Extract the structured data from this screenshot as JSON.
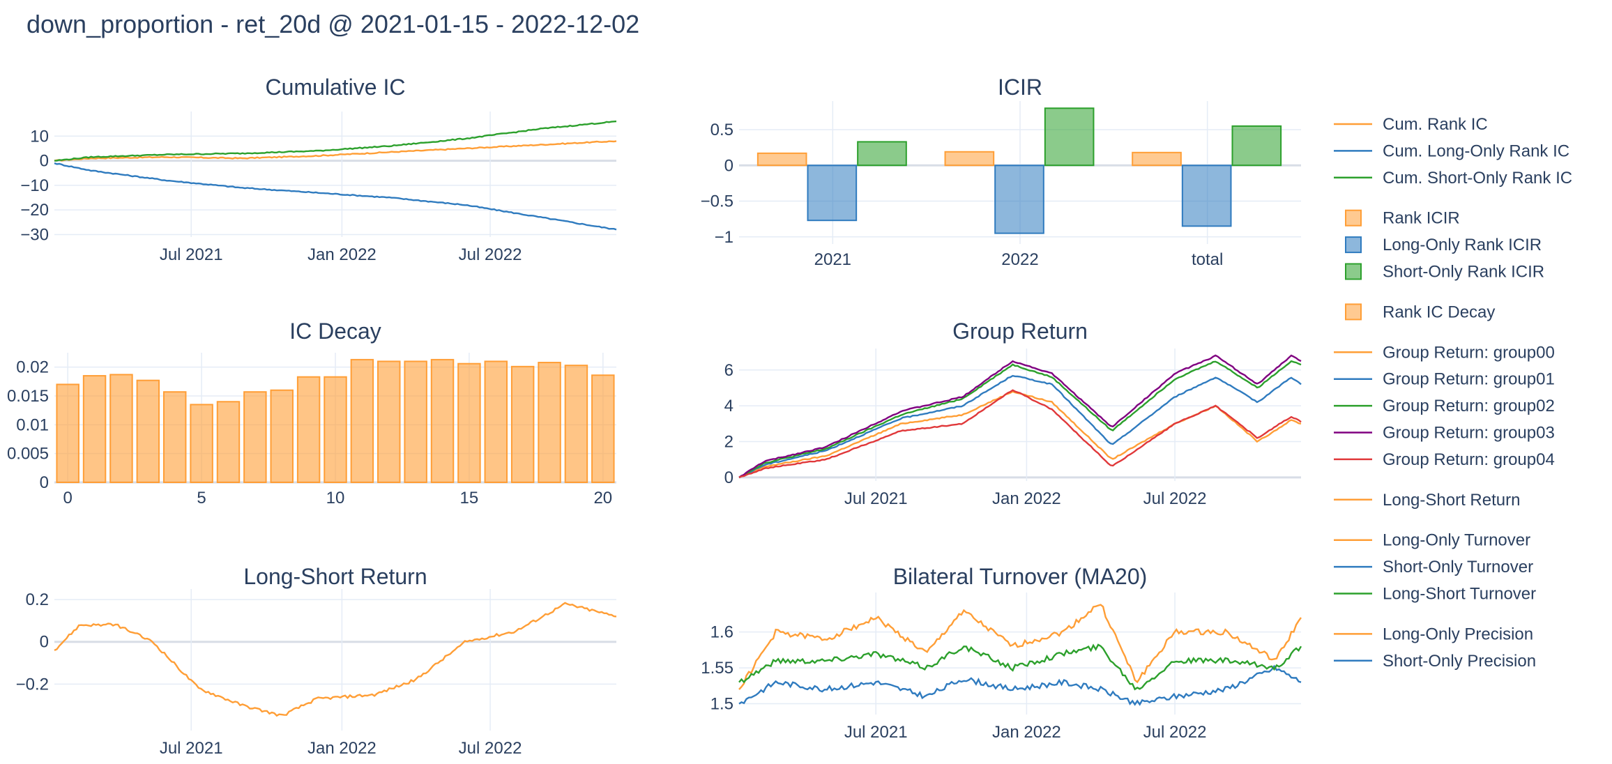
{
  "title": "down_proportion - ret_20d @ 2021-01-15 - 2022-12-02",
  "colors": {
    "orange": "#ff9e36",
    "blue": "#2f7bbf",
    "green": "#2ca02c",
    "purple": "#800080",
    "red": "#e0383a",
    "grid": "#e5ecf6",
    "zero": "#d8dde6"
  },
  "chart_data": [
    {
      "id": "cum_ic",
      "type": "line",
      "title": "Cumulative IC",
      "x_range": [
        "2021-01-15",
        "2022-12-02"
      ],
      "ylim": [
        -31,
        20
      ],
      "yticks": [
        10,
        0,
        -10,
        -20,
        -30
      ],
      "ytick_labels": [
        "10",
        "0",
        "−10",
        "−20",
        "−30"
      ],
      "xticks": [
        "2021-07-01",
        "2022-01-01",
        "2022-07-01"
      ],
      "xtick_labels": [
        "Jul 2021",
        "Jan 2022",
        "Jul 2022"
      ],
      "series": [
        {
          "name": "Cum. Rank IC",
          "color": "orange",
          "x": [
            "2021-01-15",
            "2021-03-01",
            "2021-06-01",
            "2021-09-01",
            "2021-12-01",
            "2022-03-01",
            "2022-06-01",
            "2022-09-01",
            "2022-12-02"
          ],
          "y": [
            0,
            1,
            1.5,
            1,
            2,
            3.5,
            5,
            6.5,
            8
          ]
        },
        {
          "name": "Cum. Long-Only Rank IC",
          "color": "blue",
          "x": [
            "2021-01-15",
            "2021-03-01",
            "2021-06-01",
            "2021-09-01",
            "2021-12-01",
            "2022-03-01",
            "2022-06-01",
            "2022-09-01",
            "2022-12-02"
          ],
          "y": [
            -1,
            -4,
            -8,
            -11,
            -13,
            -15,
            -18,
            -23,
            -28
          ]
        },
        {
          "name": "Cum. Short-Only Rank IC",
          "color": "green",
          "x": [
            "2021-01-15",
            "2021-03-01",
            "2021-06-01",
            "2021-09-01",
            "2021-12-01",
            "2022-03-01",
            "2022-06-01",
            "2022-09-01",
            "2022-12-02"
          ],
          "y": [
            0,
            1.5,
            2.5,
            3,
            4,
            6,
            9,
            13,
            16
          ]
        }
      ]
    },
    {
      "id": "icir",
      "type": "bar",
      "title": "ICIR",
      "categories": [
        "2021",
        "2022",
        "total"
      ],
      "ylim": [
        -1.1,
        0.9
      ],
      "yticks": [
        0.5,
        0,
        -0.5,
        -1
      ],
      "ytick_labels": [
        "0.5",
        "0",
        "−0.5",
        "−1"
      ],
      "series": [
        {
          "name": "Rank ICIR",
          "color": "orange",
          "values": [
            0.17,
            0.19,
            0.18
          ]
        },
        {
          "name": "Long-Only Rank ICIR",
          "color": "blue",
          "values": [
            -0.77,
            -0.95,
            -0.85
          ]
        },
        {
          "name": "Short-Only Rank ICIR",
          "color": "green",
          "values": [
            0.33,
            0.8,
            0.55
          ]
        }
      ]
    },
    {
      "id": "ic_decay",
      "type": "bar",
      "title": "IC Decay",
      "x": [
        0,
        1,
        2,
        3,
        4,
        5,
        6,
        7,
        8,
        9,
        10,
        11,
        12,
        13,
        14,
        15,
        16,
        17,
        18,
        19,
        20
      ],
      "ylim": [
        0,
        0.0225
      ],
      "yticks": [
        0,
        0.005,
        0.01,
        0.015,
        0.02
      ],
      "ytick_labels": [
        "0",
        "0.005",
        "0.01",
        "0.015",
        "0.02"
      ],
      "xticks": [
        0,
        5,
        10,
        15,
        20
      ],
      "series": [
        {
          "name": "Rank IC Decay",
          "color": "orange",
          "values": [
            0.017,
            0.0185,
            0.0187,
            0.0177,
            0.0157,
            0.0135,
            0.014,
            0.0157,
            0.016,
            0.0183,
            0.0183,
            0.0213,
            0.021,
            0.021,
            0.0213,
            0.0206,
            0.021,
            0.0201,
            0.0208,
            0.0203,
            0.0186
          ]
        }
      ]
    },
    {
      "id": "group_return",
      "type": "line",
      "title": "Group Return",
      "x_range": [
        "2021-01-15",
        "2022-12-02"
      ],
      "ylim": [
        -0.2,
        7.2
      ],
      "yticks": [
        0,
        2,
        4,
        6
      ],
      "ytick_labels": [
        "0",
        "2",
        "4",
        "6"
      ],
      "xticks": [
        "2021-07-01",
        "2022-01-01",
        "2022-07-01"
      ],
      "xtick_labels": [
        "Jul 2021",
        "Jan 2022",
        "Jul 2022"
      ],
      "series": [
        {
          "name": "Group Return: group00",
          "color": "orange",
          "x": [
            "2021-01-15",
            "2021-02-15",
            "2021-05-01",
            "2021-08-01",
            "2021-10-15",
            "2021-12-15",
            "2022-02-01",
            "2022-04-15",
            "2022-07-01",
            "2022-08-20",
            "2022-10-10",
            "2022-11-20",
            "2022-12-02"
          ],
          "y": [
            0,
            0.6,
            1.2,
            3,
            3.5,
            4.8,
            4.2,
            1.0,
            3.0,
            4.0,
            2.0,
            3.2,
            3.0
          ]
        },
        {
          "name": "Group Return: group01",
          "color": "blue",
          "x": [
            "2021-01-15",
            "2021-02-15",
            "2021-05-01",
            "2021-08-01",
            "2021-10-15",
            "2021-12-15",
            "2022-02-01",
            "2022-04-15",
            "2022-07-01",
            "2022-08-20",
            "2022-10-10",
            "2022-11-20",
            "2022-12-02"
          ],
          "y": [
            0,
            0.7,
            1.5,
            3.3,
            4.0,
            5.7,
            5.2,
            1.8,
            4.5,
            5.6,
            4.2,
            5.6,
            5.2
          ]
        },
        {
          "name": "Group Return: group02",
          "color": "green",
          "x": [
            "2021-01-15",
            "2021-02-15",
            "2021-05-01",
            "2021-08-01",
            "2021-10-15",
            "2021-12-15",
            "2022-02-01",
            "2022-04-15",
            "2022-07-01",
            "2022-08-20",
            "2022-10-10",
            "2022-11-20",
            "2022-12-02"
          ],
          "y": [
            0,
            0.8,
            1.6,
            3.5,
            4.4,
            6.3,
            5.6,
            2.6,
            5.5,
            6.5,
            5.0,
            6.5,
            6.3
          ]
        },
        {
          "name": "Group Return: group03",
          "color": "purple",
          "x": [
            "2021-01-15",
            "2021-02-15",
            "2021-05-01",
            "2021-08-01",
            "2021-10-15",
            "2021-12-15",
            "2022-02-01",
            "2022-04-15",
            "2022-07-01",
            "2022-08-20",
            "2022-10-10",
            "2022-11-20",
            "2022-12-02"
          ],
          "y": [
            0,
            0.9,
            1.7,
            3.7,
            4.5,
            6.5,
            5.8,
            2.8,
            5.8,
            6.8,
            5.2,
            6.8,
            6.5
          ]
        },
        {
          "name": "Group Return: group04",
          "color": "red",
          "x": [
            "2021-01-15",
            "2021-02-15",
            "2021-05-01",
            "2021-08-01",
            "2021-10-15",
            "2021-12-15",
            "2022-02-01",
            "2022-04-15",
            "2022-07-01",
            "2022-08-20",
            "2022-10-10",
            "2022-11-20",
            "2022-12-02"
          ],
          "y": [
            0,
            0.5,
            1.0,
            2.6,
            3.0,
            4.9,
            3.8,
            0.6,
            3.0,
            4.0,
            2.2,
            3.4,
            3.1
          ]
        }
      ]
    },
    {
      "id": "long_short",
      "type": "line",
      "title": "Long-Short Return",
      "x_range": [
        "2021-01-15",
        "2022-12-02"
      ],
      "ylim": [
        -0.42,
        0.25
      ],
      "yticks": [
        0.2,
        0,
        -0.2
      ],
      "ytick_labels": [
        "0.2",
        "0",
        "−0.2"
      ],
      "xticks": [
        "2021-07-01",
        "2022-01-01",
        "2022-07-01"
      ],
      "xtick_labels": [
        "Jul 2021",
        "Jan 2022",
        "Jul 2022"
      ],
      "series": [
        {
          "name": "Long-Short Return",
          "color": "orange",
          "x": [
            "2021-01-15",
            "2021-02-15",
            "2021-04-01",
            "2021-05-15",
            "2021-07-10",
            "2021-09-01",
            "2021-10-20",
            "2021-12-01",
            "2022-02-10",
            "2022-04-01",
            "2022-06-01",
            "2022-08-01",
            "2022-10-01",
            "2022-12-02"
          ],
          "y": [
            -0.04,
            0.08,
            0.08,
            0.0,
            -0.22,
            -0.3,
            -0.35,
            -0.27,
            -0.25,
            -0.18,
            0.0,
            0.05,
            0.18,
            0.12
          ]
        }
      ]
    },
    {
      "id": "turnover",
      "type": "line",
      "title": "Bilateral Turnover (MA20)",
      "x_range": [
        "2021-01-15",
        "2022-12-02"
      ],
      "ylim": [
        1.485,
        1.655
      ],
      "yticks": [
        1.5,
        1.55,
        1.6
      ],
      "ytick_labels": [
        "1.5",
        "1.55",
        "1.6"
      ],
      "xticks": [
        "2021-07-01",
        "2022-01-01",
        "2022-07-01"
      ],
      "xtick_labels": [
        "Jul 2021",
        "Jan 2022",
        "Jul 2022"
      ],
      "series": [
        {
          "name": "Long-Only Turnover",
          "color": "orange",
          "x": [
            "2021-01-15",
            "2021-03-01",
            "2021-05-01",
            "2021-07-01",
            "2021-09-01",
            "2021-10-15",
            "2021-12-15",
            "2022-02-15",
            "2022-04-01",
            "2022-05-15",
            "2022-07-01",
            "2022-09-01",
            "2022-11-01",
            "2022-12-02"
          ],
          "y": [
            1.52,
            1.6,
            1.59,
            1.62,
            1.57,
            1.63,
            1.58,
            1.6,
            1.64,
            1.53,
            1.6,
            1.6,
            1.56,
            1.62
          ]
        },
        {
          "name": "Short-Only Turnover",
          "color": "blue",
          "x": [
            "2021-01-15",
            "2021-03-01",
            "2021-05-01",
            "2021-07-01",
            "2021-09-01",
            "2021-10-15",
            "2021-12-15",
            "2022-02-15",
            "2022-04-01",
            "2022-05-15",
            "2022-07-01",
            "2022-09-01",
            "2022-11-01",
            "2022-12-02"
          ],
          "y": [
            1.5,
            1.53,
            1.52,
            1.53,
            1.51,
            1.535,
            1.52,
            1.53,
            1.52,
            1.5,
            1.51,
            1.52,
            1.55,
            1.53
          ]
        },
        {
          "name": "Long-Short Turnover",
          "color": "green",
          "x": [
            "2021-01-15",
            "2021-03-01",
            "2021-05-01",
            "2021-07-01",
            "2021-09-01",
            "2021-10-15",
            "2021-12-15",
            "2022-02-15",
            "2022-04-01",
            "2022-05-15",
            "2022-07-01",
            "2022-09-01",
            "2022-11-01",
            "2022-12-02"
          ],
          "y": [
            1.53,
            1.56,
            1.56,
            1.57,
            1.55,
            1.58,
            1.55,
            1.57,
            1.58,
            1.52,
            1.56,
            1.56,
            1.55,
            1.58
          ]
        }
      ]
    }
  ],
  "legend": [
    {
      "group": [
        {
          "label": "Cum. Rank IC",
          "color": "orange",
          "kind": "line"
        },
        {
          "label": "Cum. Long-Only Rank IC",
          "color": "blue",
          "kind": "line"
        },
        {
          "label": "Cum. Short-Only Rank IC",
          "color": "green",
          "kind": "line"
        }
      ]
    },
    {
      "group": [
        {
          "label": "Rank ICIR",
          "color": "orange",
          "kind": "box"
        },
        {
          "label": "Long-Only Rank ICIR",
          "color": "blue",
          "kind": "box"
        },
        {
          "label": "Short-Only Rank ICIR",
          "color": "green",
          "kind": "box"
        }
      ]
    },
    {
      "group": [
        {
          "label": "Rank IC Decay",
          "color": "orange",
          "kind": "box"
        }
      ]
    },
    {
      "group": [
        {
          "label": "Group Return: group00",
          "color": "orange",
          "kind": "line"
        },
        {
          "label": "Group Return: group01",
          "color": "blue",
          "kind": "line"
        },
        {
          "label": "Group Return: group02",
          "color": "green",
          "kind": "line"
        },
        {
          "label": "Group Return: group03",
          "color": "purple",
          "kind": "line"
        },
        {
          "label": "Group Return: group04",
          "color": "red",
          "kind": "line"
        }
      ]
    },
    {
      "group": [
        {
          "label": "Long-Short Return",
          "color": "orange",
          "kind": "line"
        }
      ]
    },
    {
      "group": [
        {
          "label": "Long-Only Turnover",
          "color": "orange",
          "kind": "line"
        },
        {
          "label": "Short-Only Turnover",
          "color": "blue",
          "kind": "line"
        },
        {
          "label": "Long-Short Turnover",
          "color": "green",
          "kind": "line"
        }
      ]
    },
    {
      "group": [
        {
          "label": "Long-Only Precision",
          "color": "orange",
          "kind": "line"
        },
        {
          "label": "Short-Only Precision",
          "color": "blue",
          "kind": "line"
        }
      ]
    }
  ]
}
